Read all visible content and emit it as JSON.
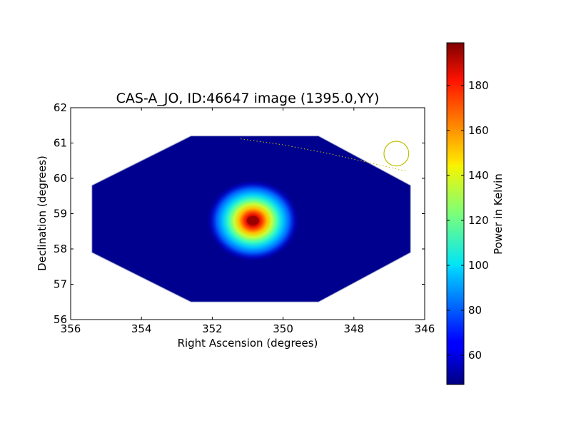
{
  "chart_data": [
    {
      "type": "heatmap",
      "title": "CAS-A_JO, ID:46647 image (1395.0,YY)",
      "xlabel": "Right Ascension (degrees)",
      "ylabel": "Declination (degrees)",
      "xlim": [
        356,
        346
      ],
      "ylim": [
        56,
        62
      ],
      "x_ticks": [
        "356",
        "354",
        "352",
        "350",
        "348",
        "346"
      ],
      "y_ticks": [
        "56",
        "57",
        "58",
        "59",
        "60",
        "61",
        "62"
      ],
      "grid": false,
      "image_footprint": {
        "ra_vertices": [
          352.6,
          349.0,
          346.4,
          346.4,
          349.0,
          352.6,
          355.4,
          355.4
        ],
        "dec_vertices": [
          61.2,
          61.2,
          59.8,
          57.9,
          56.5,
          56.5,
          57.9,
          59.8
        ]
      },
      "background_value": 47,
      "source": {
        "ra": 350.85,
        "dec": 58.8,
        "peak_value": 198,
        "ra_sigma": 0.55,
        "dec_sigma": 0.45
      },
      "beam_circle": {
        "ra": 346.8,
        "dec": 60.7,
        "radius_deg": 0.35,
        "color": "#bfbf00"
      },
      "dotted_track": {
        "color": "#bfbf00",
        "ra": [
          351.2,
          350.0,
          348.8,
          347.6,
          346.5
        ],
        "dec": [
          61.12,
          60.95,
          60.72,
          60.45,
          60.2
        ]
      }
    },
    {
      "type": "colorbar",
      "label": "Power in Kelvin",
      "vmin": 47,
      "vmax": 199,
      "ticks": [
        {
          "value": 60,
          "label": "60"
        },
        {
          "value": 80,
          "label": "80"
        },
        {
          "value": 100,
          "label": "100"
        },
        {
          "value": 120,
          "label": "120"
        },
        {
          "value": 140,
          "label": "140"
        },
        {
          "value": 160,
          "label": "160"
        },
        {
          "value": 180,
          "label": "180"
        }
      ],
      "colormap": "jet"
    }
  ]
}
